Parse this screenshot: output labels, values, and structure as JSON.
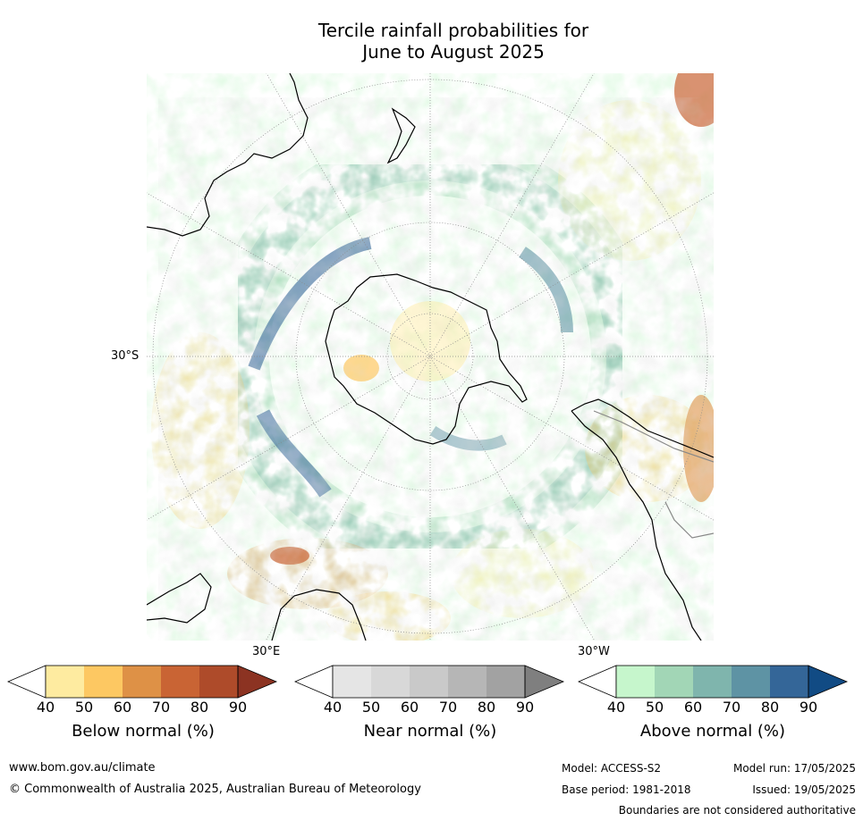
{
  "title_line1": "Tercile rainfall probabilities for",
  "title_line2": "June to August 2025",
  "map": {
    "lat_label": "30°S",
    "lon_label_east": "30°E",
    "lon_label_west": "30°W"
  },
  "colorbars": [
    {
      "name": "below",
      "label": "Below normal (%)",
      "ticks": [
        "40",
        "50",
        "60",
        "70",
        "80",
        "90"
      ],
      "colors": [
        "#ffffff",
        "#feeba0",
        "#fdc862",
        "#de9146",
        "#c96434",
        "#ae4b2a",
        "#8c3322"
      ]
    },
    {
      "name": "near",
      "label": "Near normal (%)",
      "ticks": [
        "40",
        "50",
        "60",
        "70",
        "80",
        "90"
      ],
      "colors": [
        "#ffffff",
        "#e5e5e5",
        "#d8d8d8",
        "#c9c9c9",
        "#b6b6b6",
        "#a2a2a2",
        "#7f7f7f"
      ]
    },
    {
      "name": "above",
      "label": "Above normal (%)",
      "ticks": [
        "40",
        "50",
        "60",
        "70",
        "80",
        "90"
      ],
      "colors": [
        "#ffffff",
        "#c6f6cc",
        "#a2d6b6",
        "#7fb5ad",
        "#5e93a4",
        "#346698",
        "#114b84"
      ]
    }
  ],
  "footer": {
    "url": "www.bom.gov.au/climate",
    "copyright": "© Commonwealth of Australia 2025, Australian Bureau of Meteorology",
    "model": "Model: ACCESS-S2",
    "base_period": "Base period: 1981-2018",
    "model_run": "Model run: 17/05/2025",
    "issued": "Issued: 19/05/2025",
    "disclaimer": "Boundaries are not considered authoritative"
  }
}
